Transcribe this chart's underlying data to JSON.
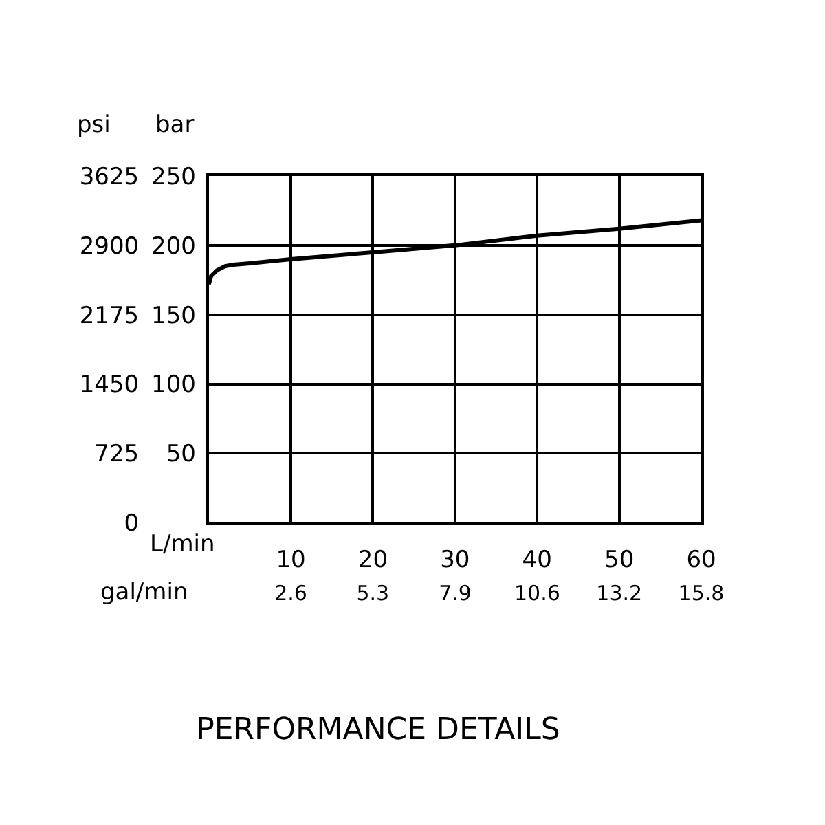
{
  "chart_data": {
    "type": "line",
    "title": "PERFORMANCE DETAILS",
    "xlabel": "L/min",
    "x2label": "gal/min",
    "ylabel": "bar",
    "y2label": "psi",
    "x": [
      0,
      0.3,
      1,
      2,
      3,
      5,
      10,
      20,
      30,
      40,
      50,
      60
    ],
    "series": [
      {
        "color": "#000000",
        "values": [
          172,
          178,
          182,
          185,
          186,
          187,
          190,
          195,
          200,
          207,
          212,
          218
        ]
      }
    ],
    "xlim": [
      0,
      60
    ],
    "xticks": [
      10,
      20,
      30,
      40,
      50,
      60
    ],
    "x2lim": [
      0,
      15.85
    ],
    "x2ticks": [
      {
        "value": 2.64,
        "label": "2.6"
      },
      {
        "value": 5.28,
        "label": "5.3"
      },
      {
        "value": 7.93,
        "label": "7.9"
      },
      {
        "value": 10.57,
        "label": "10.6"
      },
      {
        "value": 13.21,
        "label": "13.2"
      },
      {
        "value": 15.85,
        "label": "15.8"
      }
    ],
    "ylim": [
      0,
      250
    ],
    "yticks": [
      50,
      100,
      150,
      200,
      250
    ],
    "y2lim": [
      0,
      3625
    ],
    "y2ticks": [
      0,
      725,
      1450,
      2175,
      2900,
      3625
    ],
    "grid": true,
    "marker": "none",
    "line_style": "solid"
  }
}
